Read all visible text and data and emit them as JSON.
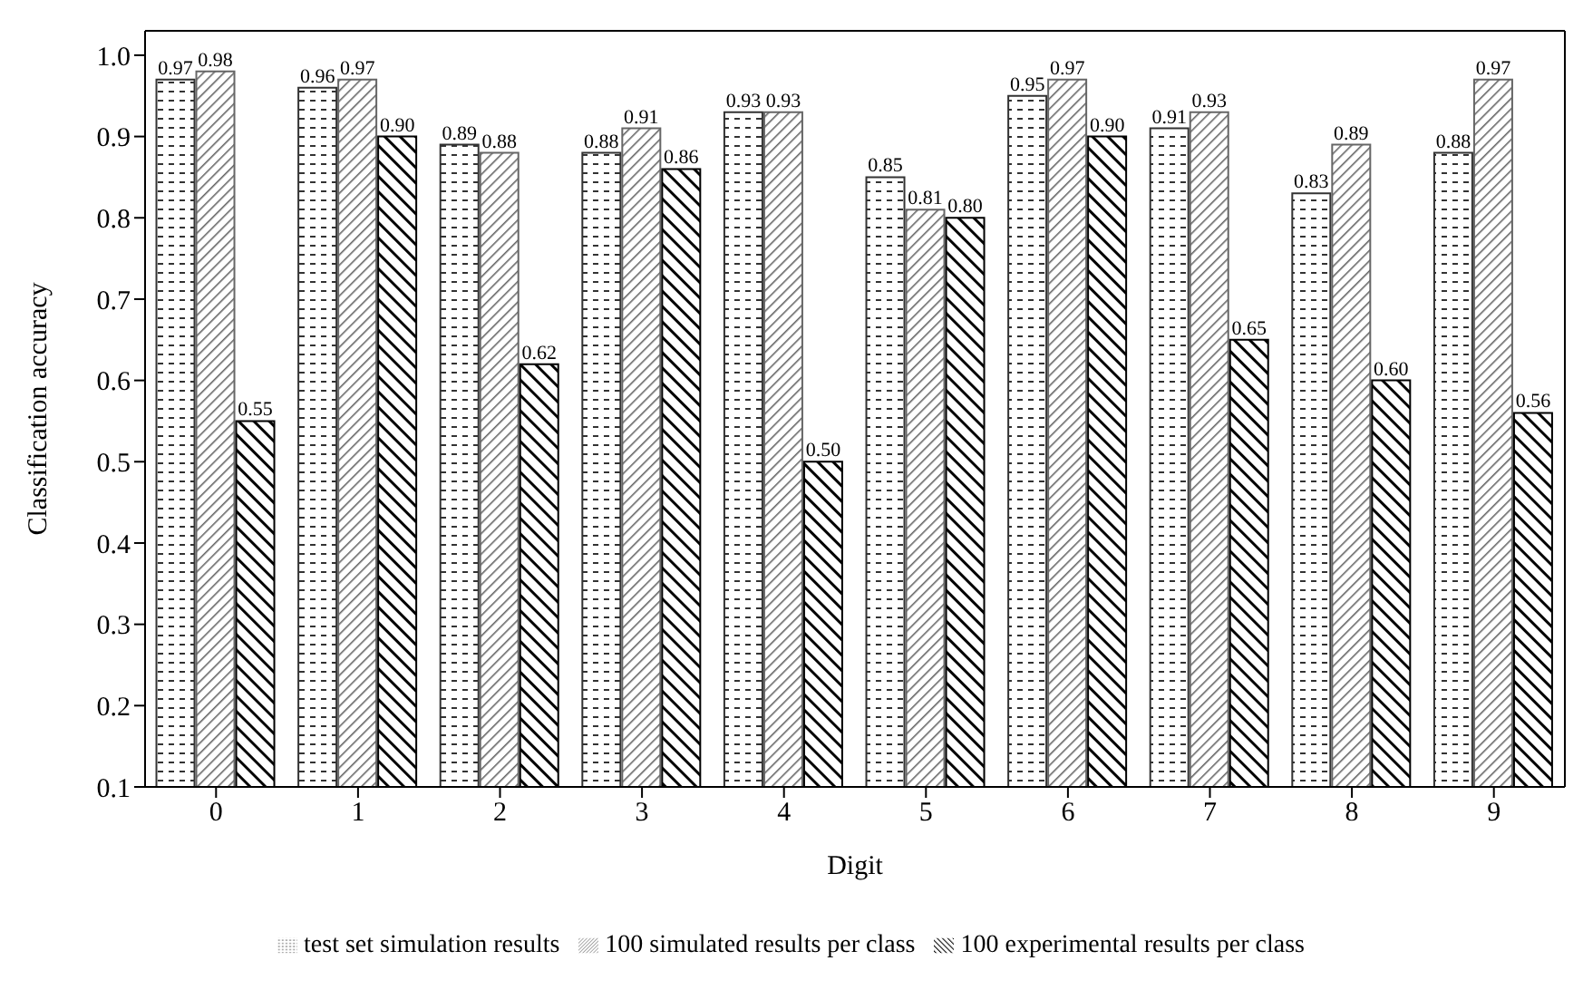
{
  "chart_data": {
    "type": "bar",
    "xlabel": "Digit",
    "ylabel": "Classification accuracy",
    "categories": [
      "0",
      "1",
      "2",
      "3",
      "4",
      "5",
      "6",
      "7",
      "8",
      "9"
    ],
    "series": [
      {
        "name": "test set simulation results",
        "color": "#333333",
        "values": [
          0.97,
          0.96,
          0.89,
          0.88,
          0.93,
          0.85,
          0.95,
          0.91,
          0.83,
          0.88
        ],
        "value_labels": [
          "0.97",
          "0.96",
          "0.89",
          "0.88",
          "0.93",
          "0.85",
          "0.95",
          "0.91",
          "0.83",
          "0.88"
        ]
      },
      {
        "name": "100 simulated results per class",
        "color": "#666666",
        "values": [
          0.98,
          0.97,
          0.88,
          0.91,
          0.93,
          0.81,
          0.97,
          0.93,
          0.89,
          0.97
        ],
        "value_labels": [
          "0.98",
          "0.97",
          "0.88",
          "0.91",
          "0.93",
          "0.81",
          "0.97",
          "0.93",
          "0.89",
          "0.97"
        ]
      },
      {
        "name": "100 experimental results per class",
        "color": "#000000",
        "values": [
          0.55,
          0.9,
          0.62,
          0.86,
          0.5,
          0.8,
          0.9,
          0.65,
          0.6,
          0.56
        ],
        "value_labels": [
          "0.55",
          "0.90",
          "0.62",
          "0.86",
          "0.50",
          "0.80",
          "0.90",
          "0.65",
          "0.60",
          "0.56"
        ]
      }
    ],
    "ylim": [
      0.1,
      1.03
    ],
    "yticks": [
      0.1,
      0.2,
      0.3,
      0.4,
      0.5,
      0.6,
      0.7,
      0.8,
      0.9,
      {
        "value": 1.0,
        "label": "1.0"
      }
    ],
    "grid": false,
    "legend": "bottom"
  }
}
